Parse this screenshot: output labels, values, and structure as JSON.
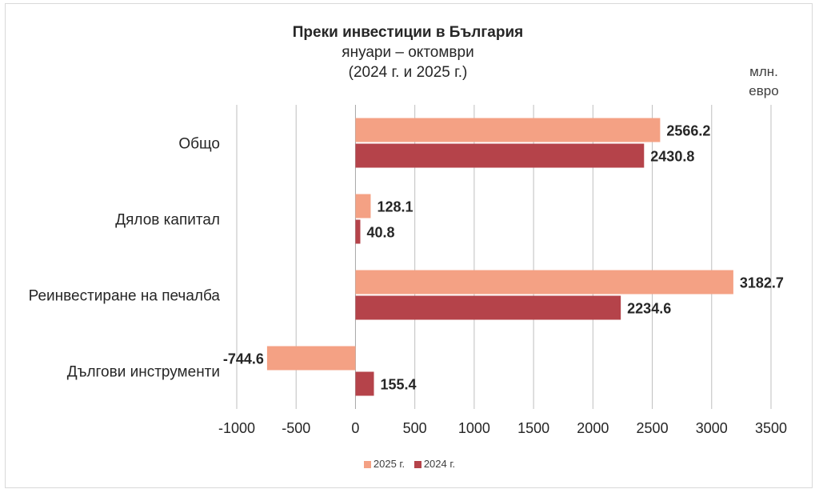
{
  "chart_data": {
    "type": "bar",
    "orientation": "horizontal",
    "title": "Преки инвестиции в България",
    "subtitle": "януари – октомври",
    "subtitle2": "(2024 г. и 2025 г.)",
    "unit_line1": "млн.",
    "unit_line2": "евро",
    "categories": [
      "Общо",
      "Дялов капитал",
      "Реинвестиране на печалба",
      "Дългови инструменти"
    ],
    "series": [
      {
        "name": "2025 г.",
        "color": "#f4a184",
        "values": [
          2566.2,
          128.1,
          3182.7,
          -744.6
        ],
        "labels": [
          "2566.2",
          "128.1",
          "3182.7",
          "-744.6"
        ]
      },
      {
        "name": "2024 г.",
        "color": "#b5434a",
        "values": [
          2430.8,
          40.8,
          2234.6,
          155.4
        ],
        "labels": [
          "2430.8",
          "40.8",
          "2234.6",
          "155.4"
        ]
      }
    ],
    "xlim": [
      -1000,
      3500
    ],
    "xticks": [
      "-1000",
      "-500",
      "0",
      "500",
      "1000",
      "1500",
      "2000",
      "2500",
      "3000",
      "3500"
    ],
    "grid": "vertical",
    "legend_position": "bottom"
  }
}
